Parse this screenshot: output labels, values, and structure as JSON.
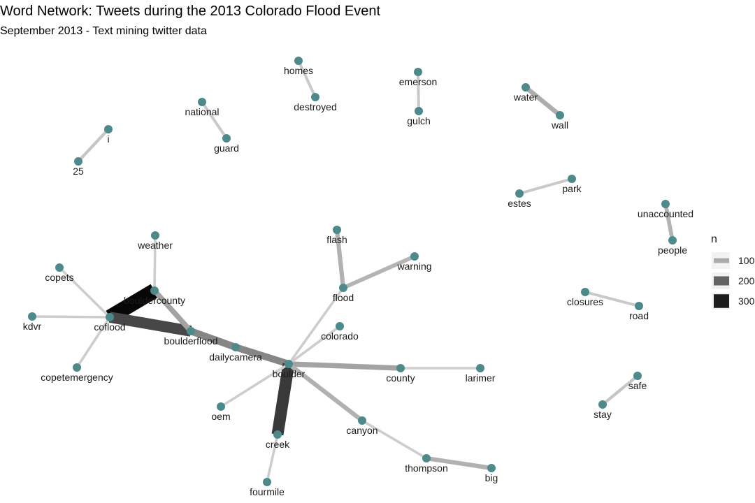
{
  "title": "Word Network: Tweets during the 2013 Colorado Flood Event",
  "subtitle": "September 2013 - Text mining twitter data",
  "colors": {
    "node": "#4e8a8b",
    "edge_low": "#d4d4d4",
    "edge_high": "#000000"
  },
  "legend": {
    "title": "n",
    "placement": "right",
    "entries": [
      {
        "label": "100",
        "n": 100
      },
      {
        "label": "200",
        "n": 200
      },
      {
        "label": "300",
        "n": 300
      }
    ]
  },
  "nodes": [
    {
      "id": "i",
      "label": "i"
    },
    {
      "id": "25",
      "label": "25"
    },
    {
      "id": "national",
      "label": "national"
    },
    {
      "id": "guard",
      "label": "guard"
    },
    {
      "id": "homes",
      "label": "homes"
    },
    {
      "id": "destroyed",
      "label": "destroyed"
    },
    {
      "id": "emerson",
      "label": "emerson"
    },
    {
      "id": "gulch",
      "label": "gulch"
    },
    {
      "id": "water",
      "label": "water"
    },
    {
      "id": "wall",
      "label": "wall"
    },
    {
      "id": "estes",
      "label": "estes"
    },
    {
      "id": "park",
      "label": "park"
    },
    {
      "id": "unaccounted",
      "label": "unaccounted"
    },
    {
      "id": "people",
      "label": "people"
    },
    {
      "id": "weather",
      "label": "weather"
    },
    {
      "id": "bouldercounty",
      "label": "bouldercounty"
    },
    {
      "id": "copets",
      "label": "copets"
    },
    {
      "id": "kdvr",
      "label": "kdvr"
    },
    {
      "id": "coflood",
      "label": "coflood"
    },
    {
      "id": "boulderflood",
      "label": "boulderflood"
    },
    {
      "id": "copetemergency",
      "label": "copetemergency"
    },
    {
      "id": "dailycamera",
      "label": "dailycamera"
    },
    {
      "id": "flash",
      "label": "flash"
    },
    {
      "id": "warning",
      "label": "warning"
    },
    {
      "id": "flood",
      "label": "flood"
    },
    {
      "id": "colorado",
      "label": "colorado"
    },
    {
      "id": "boulder",
      "label": "boulder"
    },
    {
      "id": "county",
      "label": "county"
    },
    {
      "id": "larimer",
      "label": "larimer"
    },
    {
      "id": "closures",
      "label": "closures"
    },
    {
      "id": "road",
      "label": "road"
    },
    {
      "id": "oem",
      "label": "oem"
    },
    {
      "id": "creek",
      "label": "creek"
    },
    {
      "id": "canyon",
      "label": "canyon"
    },
    {
      "id": "thompson",
      "label": "thompson"
    },
    {
      "id": "big",
      "label": "big"
    },
    {
      "id": "fourmile",
      "label": "fourmile"
    },
    {
      "id": "safe",
      "label": "safe"
    },
    {
      "id": "stay",
      "label": "stay"
    }
  ],
  "edges": [
    {
      "from": "25",
      "to": "i",
      "n": 60
    },
    {
      "from": "national",
      "to": "guard",
      "n": 55
    },
    {
      "from": "homes",
      "to": "destroyed",
      "n": 55
    },
    {
      "from": "emerson",
      "to": "gulch",
      "n": 55
    },
    {
      "from": "water",
      "to": "wall",
      "n": 95
    },
    {
      "from": "estes",
      "to": "park",
      "n": 55
    },
    {
      "from": "unaccounted",
      "to": "people",
      "n": 85
    },
    {
      "from": "closures",
      "to": "road",
      "n": 55
    },
    {
      "from": "stay",
      "to": "safe",
      "n": 60
    },
    {
      "from": "coflood",
      "to": "bouldercounty",
      "n": 330
    },
    {
      "from": "coflood",
      "to": "boulderflood",
      "n": 240
    },
    {
      "from": "coflood",
      "to": "copets",
      "n": 50
    },
    {
      "from": "coflood",
      "to": "kdvr",
      "n": 50
    },
    {
      "from": "coflood",
      "to": "copetemergency",
      "n": 50
    },
    {
      "from": "weather",
      "to": "bouldercounty",
      "n": 50
    },
    {
      "from": "bouldercounty",
      "to": "boulderflood",
      "n": 110
    },
    {
      "from": "boulderflood",
      "to": "dailycamera",
      "n": 150
    },
    {
      "from": "dailycamera",
      "to": "boulder",
      "n": 150
    },
    {
      "from": "boulder",
      "to": "creek",
      "n": 260
    },
    {
      "from": "boulder",
      "to": "county",
      "n": 110
    },
    {
      "from": "boulder",
      "to": "flood",
      "n": 50
    },
    {
      "from": "boulder",
      "to": "colorado",
      "n": 50
    },
    {
      "from": "boulder",
      "to": "oem",
      "n": 50
    },
    {
      "from": "boulder",
      "to": "canyon",
      "n": 90
    },
    {
      "from": "county",
      "to": "larimer",
      "n": 50
    },
    {
      "from": "flood",
      "to": "flash",
      "n": 90
    },
    {
      "from": "flood",
      "to": "warning",
      "n": 85
    },
    {
      "from": "creek",
      "to": "fourmile",
      "n": 50
    },
    {
      "from": "canyon",
      "to": "thompson",
      "n": 50
    },
    {
      "from": "thompson",
      "to": "big",
      "n": 90
    }
  ]
}
